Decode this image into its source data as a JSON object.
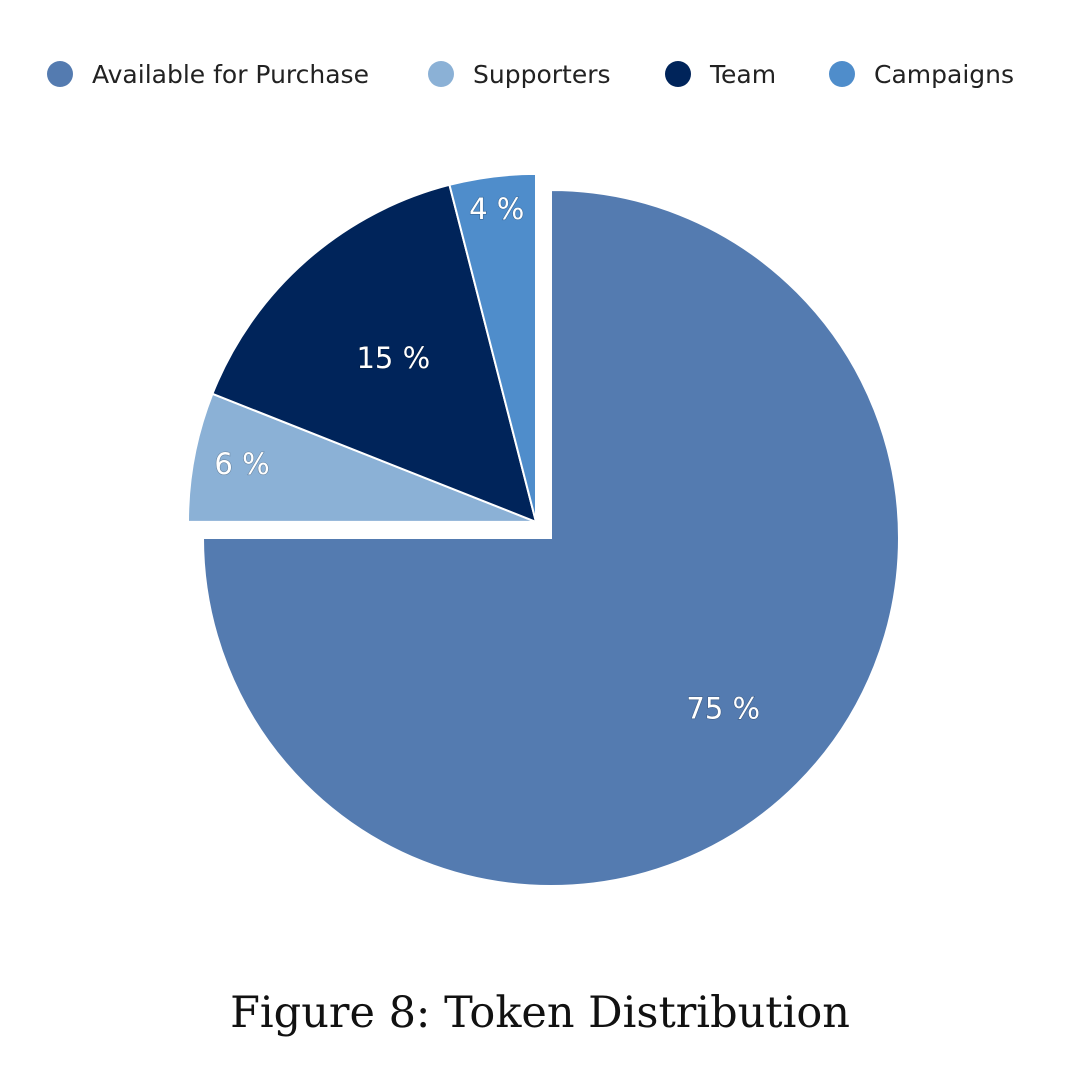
{
  "chart_data": {
    "type": "pie",
    "title": "",
    "categories": [
      "Available for Purchase",
      "Supporters",
      "Team",
      "Campaigns"
    ],
    "values": [
      75,
      6,
      15,
      4
    ],
    "labels": [
      "75 %",
      "6 %",
      "15 %",
      "4 %"
    ],
    "colors": [
      "#547bb0",
      "#8bb1d6",
      "#00245a",
      "#4f8dcb"
    ],
    "legend_position": "top",
    "exploded": [
      "Supporters",
      "Team",
      "Campaigns"
    ]
  },
  "legend": {
    "items": [
      {
        "label": "Available for Purchase",
        "color": "#547bb0"
      },
      {
        "label": "Supporters",
        "color": "#8bb1d6"
      },
      {
        "label": "Team",
        "color": "#00245a"
      },
      {
        "label": "Campaigns",
        "color": "#4f8dcb"
      }
    ]
  },
  "caption": "Figure 8:  Token Distribution"
}
